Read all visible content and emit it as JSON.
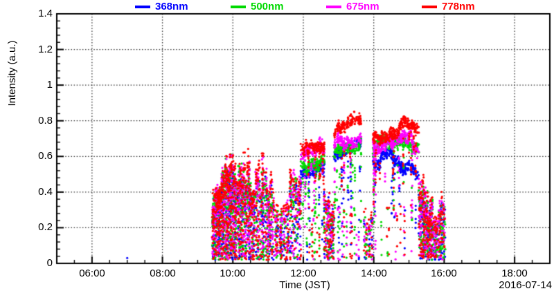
{
  "chart_data": {
    "type": "scatter",
    "title": "",
    "xlabel": "Time (JST)",
    "ylabel": "Intensity (a.u.)",
    "date_label": "2016-07-14",
    "grid": true,
    "legend_position": "top",
    "x_range_hours": [
      5,
      19
    ],
    "ylim": [
      0,
      1.4
    ],
    "x_major_hours": [
      6,
      8,
      10,
      12,
      14,
      16,
      18
    ],
    "x_minor_step_hours": 0.5,
    "y_major_step": 0.2,
    "y_minor_step": 0.04,
    "x_tick_labels": [
      "06:00",
      "08:00",
      "10:00",
      "12:00",
      "14:00",
      "16:00",
      "18:00"
    ],
    "y_tick_labels_top_to_bottom": [
      "1.4",
      "1.2",
      "1",
      "0.8",
      "0.6",
      "0.4",
      "0.2",
      "0"
    ],
    "series": [
      {
        "name": "368nm",
        "color": "#0000ff"
      },
      {
        "name": "500nm",
        "color": "#00d900"
      },
      {
        "name": "675nm",
        "color": "#ff00ff"
      },
      {
        "name": "778nm",
        "color": "#ff0000"
      }
    ],
    "series_top_factor": [
      0.88,
      0.93,
      0.97,
      1.0
    ],
    "marker_radius_px": 1.6,
    "seed": 20160714,
    "isolated_points": [
      {
        "series": 0,
        "t": 7.0,
        "y": 0.03
      }
    ],
    "bursts": [
      {
        "t0": 9.42,
        "t1": 10.05,
        "cols": 26,
        "top0": 0.48,
        "top1": 0.67,
        "d": 8,
        "low": 7
      },
      {
        "t0": 10.05,
        "t1": 10.58,
        "cols": 15,
        "top0": 0.64,
        "top1": 0.58,
        "d": 8,
        "low": 7
      },
      {
        "t0": 10.58,
        "t1": 11.13,
        "cols": 12,
        "top0": 0.61,
        "top1": 0.55,
        "d": 7,
        "low": 6
      },
      {
        "t0": 11.13,
        "t1": 11.6,
        "cols": 8,
        "top0": 0.4,
        "top1": 0.35,
        "d": 4,
        "low": 6
      },
      {
        "t0": 11.6,
        "t1": 11.93,
        "cols": 6,
        "top0": 0.5,
        "top1": 0.62,
        "d": 6,
        "low": 5
      },
      {
        "t0": 12.6,
        "t1": 12.88,
        "cols": 7,
        "top0": 0.45,
        "top1": 0.4,
        "d": 4,
        "low": 6
      },
      {
        "t0": 13.68,
        "t1": 13.97,
        "cols": 4,
        "top0": 0.35,
        "top1": 0.3,
        "d": 3,
        "low": 4
      },
      {
        "t0": 15.28,
        "t1": 15.66,
        "cols": 12,
        "top0": 0.52,
        "top1": 0.38,
        "d": 6,
        "low": 6
      },
      {
        "t0": 15.66,
        "t1": 16.04,
        "cols": 9,
        "top0": 0.28,
        "top1": 0.5,
        "d": 5,
        "low": 6
      }
    ],
    "bands": [
      {
        "t0": 11.93,
        "t1": 12.6,
        "lv0": [
          0.52,
          0.56,
          0.61,
          0.66
        ],
        "lv1": [
          0.55,
          0.59,
          0.64,
          0.7
        ],
        "jitter": 0.05,
        "step_min": 0.55,
        "smear": 0.1,
        "lowp": 0.06,
        "gap": 0.04,
        "arc": 0.0
      },
      {
        "t0": 12.88,
        "t1": 13.64,
        "lv0": [
          0.6,
          0.63,
          0.67,
          0.72
        ],
        "lv1": [
          0.66,
          0.69,
          0.73,
          0.79
        ],
        "jitter": 0.045,
        "step_min": 0.5,
        "smear": 0.08,
        "lowp": 0.05,
        "gap": 0.035,
        "arc": 0.01
      },
      {
        "t0": 13.98,
        "t1": 15.28,
        "lv0": [
          0.58,
          0.63,
          0.68,
          0.73
        ],
        "lv1": [
          0.5,
          0.6,
          0.66,
          0.71
        ],
        "jitter": 0.05,
        "step_min": 0.45,
        "smear": 0.07,
        "lowp": 0.025,
        "gap": 0.03,
        "arc": 0.04
      }
    ]
  }
}
